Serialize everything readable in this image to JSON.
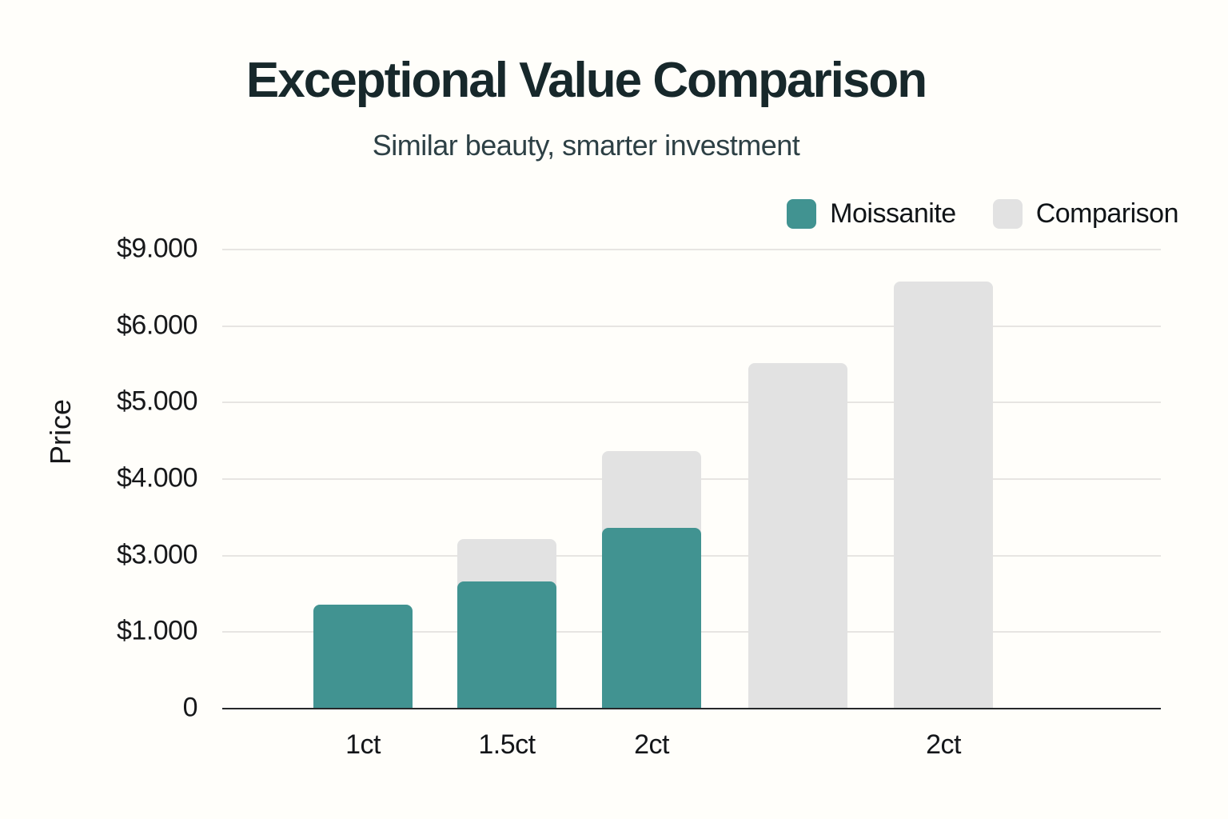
{
  "colors": {
    "background": "#fffefa",
    "gridline": "#e7e5e2",
    "axis_line": "#26282a",
    "title_text": "#17282b",
    "subtitle_text": "#2d4045",
    "tick_text": "#17181a"
  },
  "chart_data": {
    "type": "bar",
    "title": "Exceptional Value Comparison",
    "subtitle": "Similar beauty, smarter investment",
    "ylabel": "Price",
    "xlabel": "",
    "ytick_labels": [
      "$9.000",
      "$6.000",
      "$5.000",
      "$4.000",
      "$3.000",
      "$1.000",
      "0"
    ],
    "ytick_values": [
      9000,
      6000,
      5000,
      4000,
      3000,
      1000,
      0
    ],
    "categories": [
      "1ct",
      "1.5ct",
      "2ct",
      "",
      "2ct"
    ],
    "series": [
      {
        "name": "Moissanite",
        "color": "#419391",
        "values": [
          1700,
          2300,
          3350,
          null,
          null
        ]
      },
      {
        "name": "Comparison",
        "color": "#e2e2e2",
        "values": [
          null,
          3200,
          4350,
          5500,
          7700
        ]
      }
    ],
    "grid": "horizontal",
    "legend_position": "top-right",
    "ylim_note": "tick spacing is visually uniform although labeled values are non-linear"
  }
}
